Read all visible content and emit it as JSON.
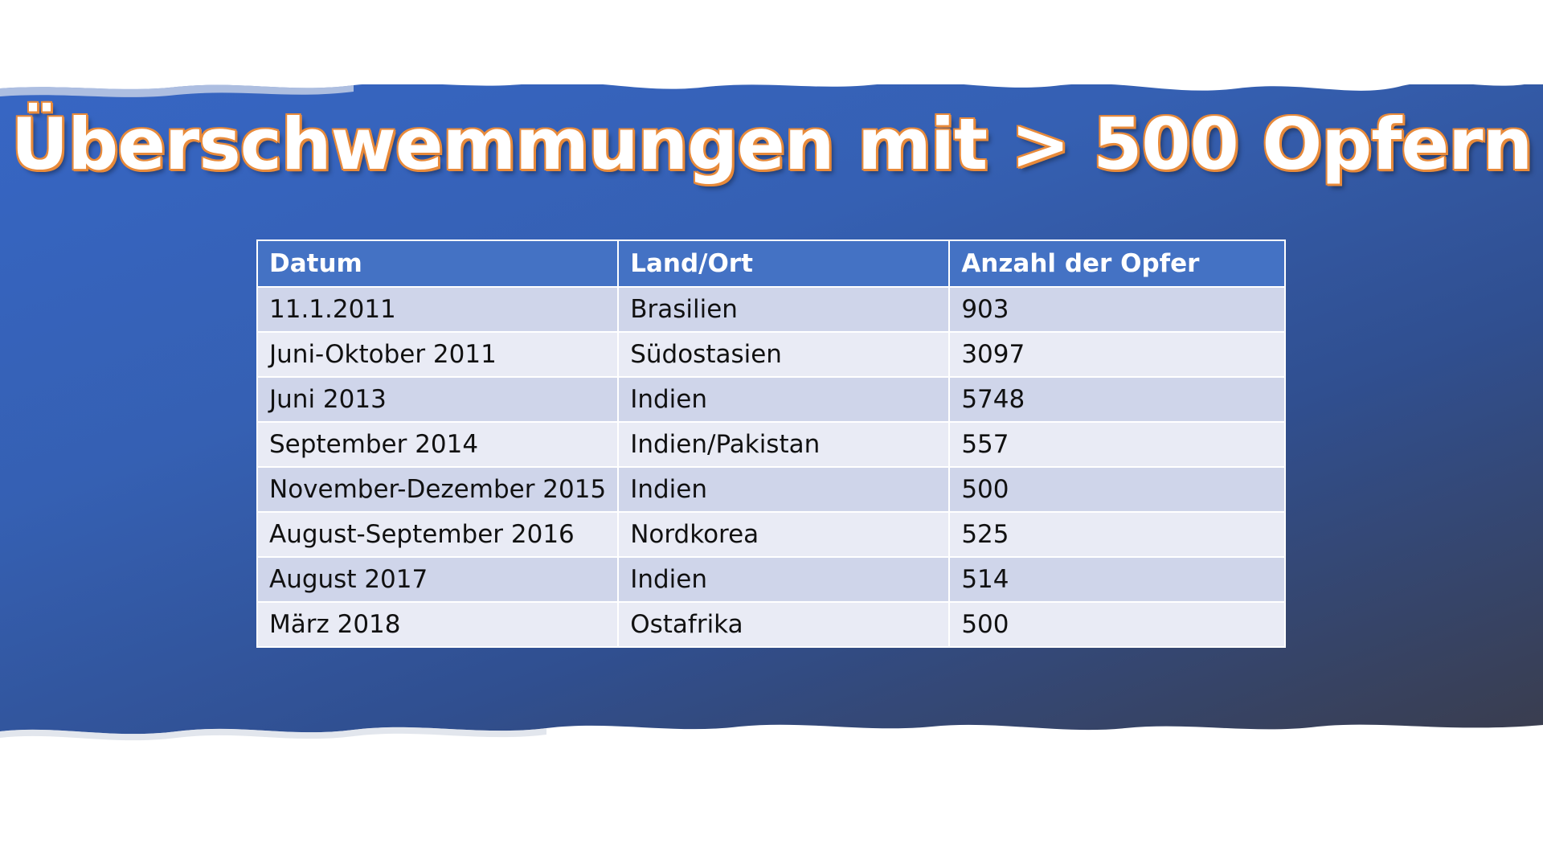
{
  "slide": {
    "title": "Überschwemmungen mit > 500 Opfern",
    "colors": {
      "banner": "#3766c4",
      "title_outline": "#e88a3a",
      "table_header": "#4472c4",
      "row_odd": "#cfd5ea",
      "row_even": "#e9ebf5"
    }
  },
  "table": {
    "headers": [
      "Datum",
      "Land/Ort",
      "Anzahl der Opfer"
    ],
    "rows": [
      [
        "11.1.2011",
        "Brasilien",
        "903"
      ],
      [
        "Juni-Oktober 2011",
        "Südostasien",
        "3097"
      ],
      [
        "Juni 2013",
        "Indien",
        "5748"
      ],
      [
        "September 2014",
        "Indien/Pakistan",
        "557"
      ],
      [
        "November-Dezember 2015",
        "Indien",
        "500"
      ],
      [
        "August-September 2016",
        "Nordkorea",
        "525"
      ],
      [
        "August 2017",
        "Indien",
        "514"
      ],
      [
        "März 2018",
        "Ostafrika",
        "500"
      ]
    ]
  }
}
